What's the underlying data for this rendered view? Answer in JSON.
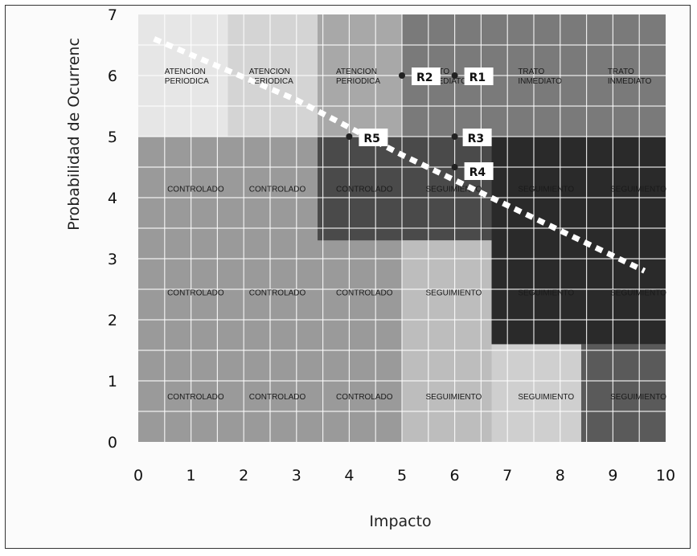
{
  "chart_data": {
    "type": "heatmap",
    "title": "",
    "xlabel": "Impacto",
    "ylabel": "Probabilidad de Ocurrenc",
    "xlim": [
      0,
      10
    ],
    "ylim": [
      0,
      7
    ],
    "x_ticks": [
      "0",
      "1",
      "2",
      "3",
      "4",
      "5",
      "6",
      "7",
      "8",
      "9",
      "10"
    ],
    "y_ticks": [
      "0",
      "1",
      "2",
      "3",
      "4",
      "5",
      "6",
      "7"
    ],
    "grid": true,
    "zones": [
      {
        "rect": [
          0,
          5,
          1.7,
          7
        ],
        "shade": "#e6e6e6"
      },
      {
        "rect": [
          1.7,
          5,
          3.4,
          7
        ],
        "shade": "#d4d4d4"
      },
      {
        "rect": [
          3.4,
          5,
          5.0,
          7
        ],
        "shade": "#a8a8a8"
      },
      {
        "rect": [
          5.0,
          5,
          10,
          7
        ],
        "shade": "#7a7a7a"
      },
      {
        "rect": [
          0,
          0,
          3.4,
          5
        ],
        "shade": "#9a9a9a"
      },
      {
        "rect": [
          3.4,
          0,
          5.0,
          3.3
        ],
        "shade": "#9a9a9a"
      },
      {
        "rect": [
          3.4,
          3.3,
          5.0,
          5
        ],
        "shade": "#4a4a4a"
      },
      {
        "rect": [
          5.0,
          3.3,
          6.7,
          5
        ],
        "shade": "#4a4a4a"
      },
      {
        "rect": [
          5.0,
          0,
          6.7,
          3.3
        ],
        "shade": "#bdbdbd"
      },
      {
        "rect": [
          6.7,
          0,
          8.4,
          1.6
        ],
        "shade": "#cfcfcf"
      },
      {
        "rect": [
          6.7,
          1.6,
          10,
          5
        ],
        "shade": "#2a2a2a"
      },
      {
        "rect": [
          8.4,
          0,
          10,
          1.6
        ],
        "shade": "#5a5a5a"
      }
    ],
    "zone_labels": [
      {
        "x": 0.5,
        "y": 5.95,
        "lines": [
          "ATENCION",
          "PERIODICA"
        ]
      },
      {
        "x": 2.1,
        "y": 5.95,
        "lines": [
          "ATENCION",
          "PERIODICA"
        ]
      },
      {
        "x": 3.75,
        "y": 5.95,
        "lines": [
          "ATENCION",
          "PERIODICA"
        ]
      },
      {
        "x": 5.4,
        "y": 5.95,
        "lines": [
          "TRATO",
          "INMEDIATO"
        ]
      },
      {
        "x": 7.2,
        "y": 5.95,
        "lines": [
          "TRATO",
          "INMEDIATO"
        ]
      },
      {
        "x": 8.9,
        "y": 5.95,
        "lines": [
          "TRATO",
          "INMEDIATO"
        ]
      },
      {
        "x": 0.55,
        "y": 4.1,
        "lines": [
          "CONTROLADO"
        ]
      },
      {
        "x": 2.1,
        "y": 4.1,
        "lines": [
          "CONTROLADO"
        ]
      },
      {
        "x": 3.75,
        "y": 4.1,
        "lines": [
          "CONTROLADO"
        ]
      },
      {
        "x": 5.45,
        "y": 4.1,
        "lines": [
          "SEGUIMIENTO"
        ]
      },
      {
        "x": 7.2,
        "y": 4.1,
        "lines": [
          "SEGUIMIENTO"
        ]
      },
      {
        "x": 8.95,
        "y": 4.1,
        "lines": [
          "SEGUIMIENTO"
        ]
      },
      {
        "x": 0.55,
        "y": 2.4,
        "lines": [
          "CONTROLADO"
        ]
      },
      {
        "x": 2.1,
        "y": 2.4,
        "lines": [
          "CONTROLADO"
        ]
      },
      {
        "x": 3.75,
        "y": 2.4,
        "lines": [
          "CONTROLADO"
        ]
      },
      {
        "x": 5.45,
        "y": 2.4,
        "lines": [
          "SEGUIMIENTO"
        ]
      },
      {
        "x": 7.2,
        "y": 2.4,
        "lines": [
          "SEGUIMIENTO"
        ]
      },
      {
        "x": 8.95,
        "y": 2.4,
        "lines": [
          "SEGUIMIENTO"
        ]
      },
      {
        "x": 0.55,
        "y": 0.7,
        "lines": [
          "CONTROLADO"
        ]
      },
      {
        "x": 2.1,
        "y": 0.7,
        "lines": [
          "CONTROLADO"
        ]
      },
      {
        "x": 3.75,
        "y": 0.7,
        "lines": [
          "CONTROLADO"
        ]
      },
      {
        "x": 5.45,
        "y": 0.7,
        "lines": [
          "SEGUIMIENTO"
        ]
      },
      {
        "x": 7.2,
        "y": 0.7,
        "lines": [
          "SEGUIMIENTO"
        ]
      },
      {
        "x": 8.95,
        "y": 0.7,
        "lines": [
          "SEGUIMIENTO"
        ]
      }
    ],
    "risk_points": [
      {
        "label": "R1",
        "x": 6,
        "y": 6
      },
      {
        "label": "R2",
        "x": 5,
        "y": 6
      },
      {
        "label": "R3",
        "x": 6,
        "y": 5
      },
      {
        "label": "R4",
        "x": 6,
        "y": 4.5
      },
      {
        "label": "R5",
        "x": 4,
        "y": 5
      }
    ],
    "threshold_line": [
      {
        "x": 0.3,
        "y": 6.6
      },
      {
        "x": 3.0,
        "y": 5.6
      },
      {
        "x": 5.0,
        "y": 4.7
      },
      {
        "x": 9.6,
        "y": 2.8
      }
    ]
  }
}
